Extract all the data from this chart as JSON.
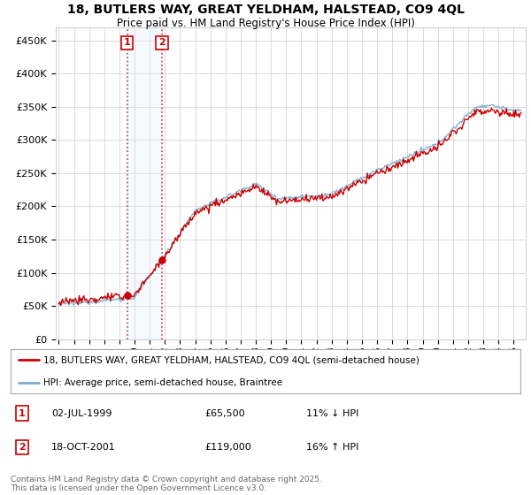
{
  "title_line1": "18, BUTLERS WAY, GREAT YELDHAM, HALSTEAD, CO9 4QL",
  "title_line2": "Price paid vs. HM Land Registry's House Price Index (HPI)",
  "legend_line1": "18, BUTLERS WAY, GREAT YELDHAM, HALSTEAD, CO9 4QL (semi-detached house)",
  "legend_line2": "HPI: Average price, semi-detached house, Braintree",
  "annotation1_label": "1",
  "annotation1_date": "02-JUL-1999",
  "annotation1_price": "£65,500",
  "annotation1_hpi": "11% ↓ HPI",
  "annotation2_label": "2",
  "annotation2_date": "18-OCT-2001",
  "annotation2_price": "£119,000",
  "annotation2_hpi": "16% ↑ HPI",
  "copyright_text": "Contains HM Land Registry data © Crown copyright and database right 2025.\nThis data is licensed under the Open Government Licence v3.0.",
  "line_color_red": "#cc0000",
  "line_color_blue": "#7aabcd",
  "vline_color": "#cc0000",
  "vregion_color": "#ddeeff",
  "annotation_box_color": "#cc0000",
  "background_color": "#ffffff",
  "grid_color": "#cccccc",
  "ylim": [
    0,
    470000
  ],
  "yticks": [
    0,
    50000,
    100000,
    150000,
    200000,
    250000,
    300000,
    350000,
    400000,
    450000
  ],
  "sale1_year": 1999.5,
  "sale2_year": 2001.8,
  "fig_width": 6.0,
  "fig_height": 5.6,
  "xmin": 1994.8,
  "xmax": 2025.8
}
